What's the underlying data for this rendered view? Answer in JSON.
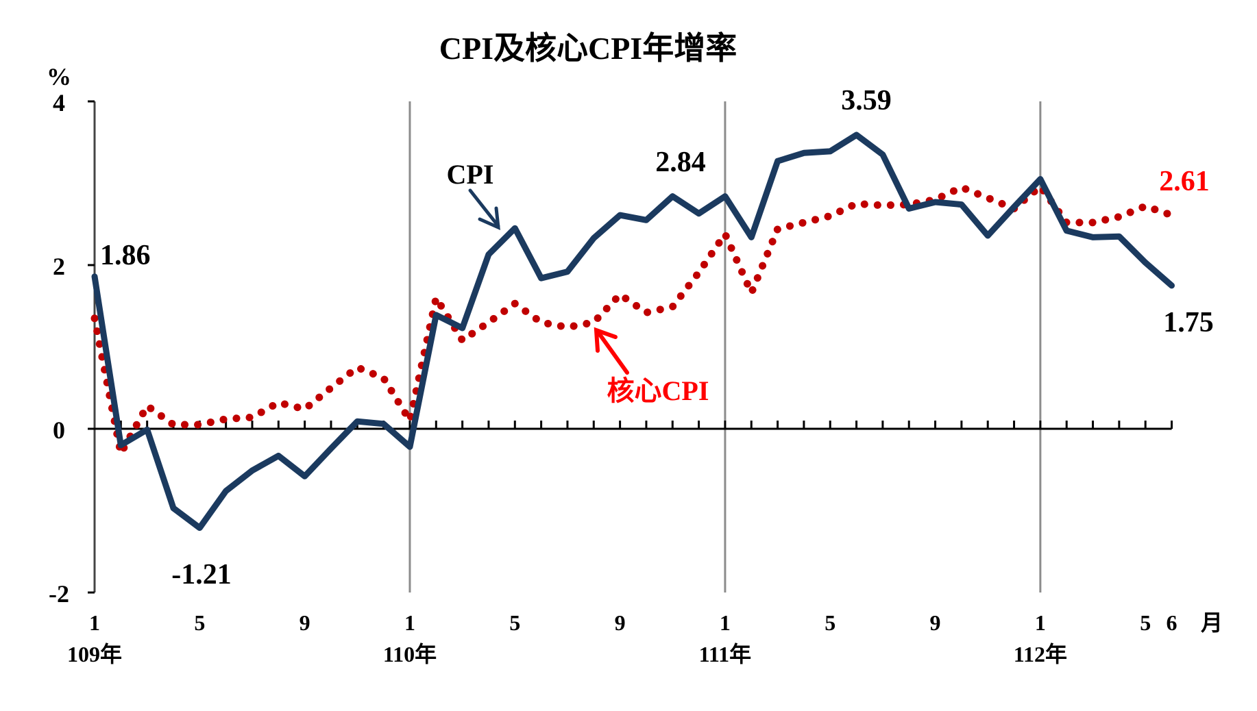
{
  "chart_data": {
    "type": "line",
    "title": "CPI及核心CPI年增率",
    "ylabel": "%",
    "xlabel": "月",
    "ylim": [
      -2,
      4
    ],
    "yticks": [
      4,
      2,
      0,
      -2
    ],
    "grid": false,
    "legend": "inline annotations",
    "year_labels": [
      {
        "label": "109年",
        "month_index": 0
      },
      {
        "label": "110年",
        "month_index": 12
      },
      {
        "label": "111年",
        "month_index": 24
      },
      {
        "label": "112年",
        "month_index": 36
      }
    ],
    "month_tick_labels": [
      {
        "label": "1",
        "month_index": 0
      },
      {
        "label": "5",
        "month_index": 4
      },
      {
        "label": "9",
        "month_index": 8
      },
      {
        "label": "1",
        "month_index": 12
      },
      {
        "label": "5",
        "month_index": 16
      },
      {
        "label": "9",
        "month_index": 20
      },
      {
        "label": "1",
        "month_index": 24
      },
      {
        "label": "5",
        "month_index": 28
      },
      {
        "label": "9",
        "month_index": 32
      },
      {
        "label": "1",
        "month_index": 36
      },
      {
        "label": "5",
        "month_index": 40
      },
      {
        "label": "6",
        "month_index": 41
      }
    ],
    "x": [
      "109/1",
      "109/2",
      "109/3",
      "109/4",
      "109/5",
      "109/6",
      "109/7",
      "109/8",
      "109/9",
      "109/10",
      "109/11",
      "109/12",
      "110/1",
      "110/2",
      "110/3",
      "110/4",
      "110/5",
      "110/6",
      "110/7",
      "110/8",
      "110/9",
      "110/10",
      "110/11",
      "110/12",
      "111/1",
      "111/2",
      "111/3",
      "111/4",
      "111/5",
      "111/6",
      "111/7",
      "111/8",
      "111/9",
      "111/10",
      "111/11",
      "111/12",
      "112/1",
      "112/2",
      "112/3",
      "112/4",
      "112/5",
      "112/6"
    ],
    "series": [
      {
        "name": "CPI",
        "style": "solid",
        "color": "#1B3A5F",
        "values": [
          1.86,
          -0.2,
          -0.01,
          -0.97,
          -1.21,
          -0.76,
          -0.51,
          -0.33,
          -0.58,
          -0.24,
          0.09,
          0.06,
          -0.22,
          1.39,
          1.23,
          2.13,
          2.45,
          1.84,
          1.92,
          2.33,
          2.61,
          2.55,
          2.84,
          2.63,
          2.84,
          2.34,
          3.27,
          3.37,
          3.39,
          3.59,
          3.35,
          2.69,
          2.77,
          2.74,
          2.36,
          2.71,
          3.05,
          2.42,
          2.34,
          2.35,
          2.03,
          1.75
        ]
      },
      {
        "name": "核心CPI",
        "style": "dotted",
        "color": "#C00000",
        "values": [
          1.35,
          -0.3,
          0.28,
          0.05,
          0.05,
          0.12,
          0.14,
          0.32,
          0.24,
          0.5,
          0.75,
          0.62,
          0.1,
          1.6,
          1.08,
          1.3,
          1.53,
          1.3,
          1.24,
          1.3,
          1.64,
          1.42,
          1.49,
          1.91,
          2.38,
          1.66,
          2.44,
          2.52,
          2.6,
          2.75,
          2.73,
          2.74,
          2.8,
          2.95,
          2.82,
          2.69,
          2.96,
          2.52,
          2.52,
          2.59,
          2.72,
          2.61
        ]
      }
    ],
    "annotations": [
      {
        "text": "1.86",
        "series": "CPI",
        "point": "109/1",
        "color": "#000000"
      },
      {
        "text": "-1.21",
        "series": "CPI",
        "point": "109/5",
        "color": "#000000"
      },
      {
        "text": "2.84",
        "series": "CPI",
        "point": "110/11",
        "color": "#000000"
      },
      {
        "text": "3.59",
        "series": "CPI",
        "point": "111/6",
        "color": "#000000"
      },
      {
        "text": "1.75",
        "series": "CPI",
        "point": "112/6",
        "color": "#000000"
      },
      {
        "text": "2.61",
        "series": "核心CPI",
        "point": "112/6",
        "color": "#FF0000"
      }
    ]
  },
  "title": "CPI及核心CPI年增率",
  "y_unit": "%",
  "x_unit": "月",
  "series_labels": {
    "cpi": "CPI",
    "core": "核心CPI"
  },
  "colors": {
    "cpi": "#1B3A5F",
    "core_dots": "#C00000",
    "core_label": "#FF0000",
    "divider": "#8C8C8C",
    "axis": "#000000"
  }
}
